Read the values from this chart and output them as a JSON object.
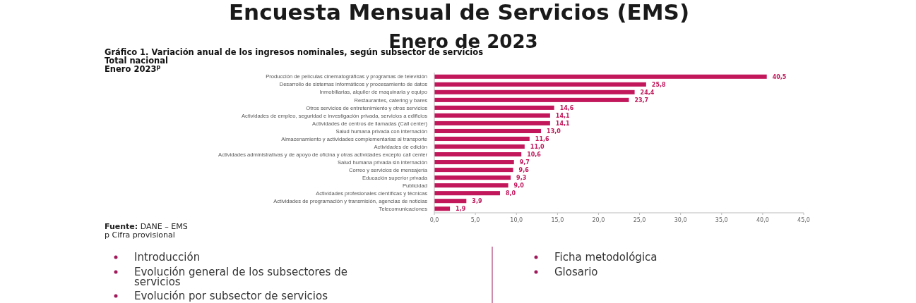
{
  "chart_data": {
    "type": "bar",
    "orientation": "horizontal",
    "title": "Encuesta Mensual de Servicios (EMS)",
    "subtitle": "Enero de 2023",
    "categories": [
      "Producción de películas cinematográficas y programas de televisión",
      "Desarrollo de sistemas informáticos y procesamiento de datos",
      "Inmobiliarias, alquiler de maquinaria y equipo",
      "Restaurantes, catering y bares",
      "Otros servicios de entretenimiento y otros servicios",
      "Actividades de empleo, seguridad e investigación privada, servicios a edificios",
      "Actividades de centros de llamadas (Call center)",
      "Salud humana privada con internación",
      "Almacenamiento y actividades complementarias al transporte",
      "Actividades de edición",
      "Actividades administrativas y de apoyo de oficina y otras actividades excepto call center",
      "Salud humana privada sin internación",
      "Correo y servicios de mensajería",
      "Educación superior privada",
      "Publicidad",
      "Actividades profesionales científicas y técnicas",
      "Actividades de programación y transmisión,  agencias de noticias",
      "Telecomunicaciones"
    ],
    "values": [
      40.5,
      25.8,
      24.4,
      23.7,
      14.6,
      14.1,
      14.1,
      13.0,
      11.6,
      11.0,
      10.6,
      9.7,
      9.6,
      9.3,
      9.0,
      8.0,
      3.9,
      1.9
    ],
    "value_labels": [
      "40,5",
      "25,8",
      "24,4",
      "23,7",
      "14,6",
      "14,1",
      "14,1",
      "13,0",
      "11,6",
      "11,0",
      "10,6",
      "9,7",
      "9,6",
      "9,3",
      "9,0",
      "8,0",
      "3,9",
      "1,9"
    ],
    "color": "#c2185b",
    "xlim": [
      0,
      45
    ],
    "xticks": [
      {
        "value": 0,
        "label": "0,0"
      },
      {
        "value": 5,
        "label": "5,0"
      },
      {
        "value": 10,
        "label": "10,0"
      },
      {
        "value": 15,
        "label": "15,0"
      },
      {
        "value": 20,
        "label": "20,0"
      },
      {
        "value": 25,
        "label": "25,0"
      },
      {
        "value": 30,
        "label": "30,0"
      },
      {
        "value": 35,
        "label": "35,0"
      },
      {
        "value": 40,
        "label": "40,0"
      },
      {
        "value": 45,
        "label": "45,0"
      }
    ],
    "grid": false,
    "annotations": [
      "Gráfico 1. Variación anual de los ingresos nominales, según subsector de servicios",
      "Total nacional",
      "Enero 2023$^{p}$",
      "Fuente: DANE – EMS",
      "p Cifra provisional",
      "Introducción",
      "Evolución general de los subsectores de servicios",
      "Evolución por subsector de servicios",
      "Ficha metodológica",
      "Glosario"
    ]
  }
}
